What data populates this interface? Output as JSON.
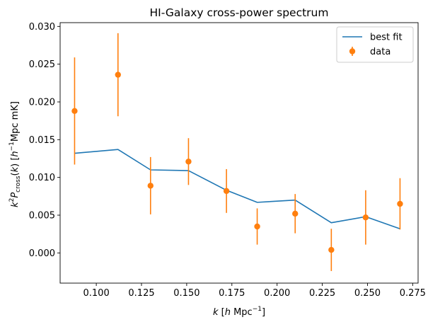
{
  "chart_data": {
    "type": "line",
    "title": "HI-Galaxy cross-power spectrum",
    "xlabel_html": "<tspan font-style='italic'>k</tspan> [<tspan font-style='italic'>h</tspan> Mpc<tspan dy='-6' font-size='9'>−1</tspan><tspan dy='6'>]</tspan>",
    "ylabel_html": "<tspan font-style='italic'>k</tspan><tspan dy='-6' font-size='9'>2</tspan><tspan dy='6' font-style='italic'>P</tspan><tspan dy='3' font-size='9'>cross</tspan><tspan dy='-3'>(</tspan><tspan font-style='italic'>k</tspan>) [<tspan font-style='italic'>h</tspan><tspan dy='-6' font-size='9'>−1</tspan><tspan dy='6'>Mpc mK]</tspan>",
    "xlim": [
      0.08,
      0.278
    ],
    "ylim": [
      -0.004,
      0.0305
    ],
    "xticks": [
      0.1,
      0.125,
      0.15,
      0.175,
      0.2,
      0.225,
      0.25,
      0.275
    ],
    "xtick_labels": [
      "0.100",
      "0.125",
      "0.150",
      "0.175",
      "0.200",
      "0.225",
      "0.250",
      "0.275"
    ],
    "yticks": [
      0.0,
      0.005,
      0.01,
      0.015,
      0.02,
      0.025,
      0.03
    ],
    "ytick_labels": [
      "0.000",
      "0.005",
      "0.010",
      "0.015",
      "0.020",
      "0.025",
      "0.030"
    ],
    "grid": false,
    "legend_placement": "upper right",
    "series": [
      {
        "name": "best fit",
        "kind": "line",
        "color": "#1f77b4",
        "x": [
          0.088,
          0.112,
          0.13,
          0.151,
          0.172,
          0.189,
          0.21,
          0.23,
          0.249,
          0.268
        ],
        "y": [
          0.0132,
          0.0137,
          0.011,
          0.0109,
          0.0083,
          0.0067,
          0.007,
          0.004,
          0.0048,
          0.0032
        ]
      },
      {
        "name": "data",
        "kind": "errorbar",
        "color": "#ff7f0e",
        "x": [
          0.088,
          0.112,
          0.13,
          0.151,
          0.172,
          0.189,
          0.21,
          0.23,
          0.249,
          0.268
        ],
        "y": [
          0.0188,
          0.0236,
          0.0089,
          0.0121,
          0.0082,
          0.0035,
          0.0052,
          0.0004,
          0.0047,
          0.0065
        ],
        "yerr": [
          0.0071,
          0.0055,
          0.0038,
          0.0031,
          0.0029,
          0.0024,
          0.0026,
          0.0028,
          0.0036,
          0.0034
        ]
      }
    ]
  }
}
